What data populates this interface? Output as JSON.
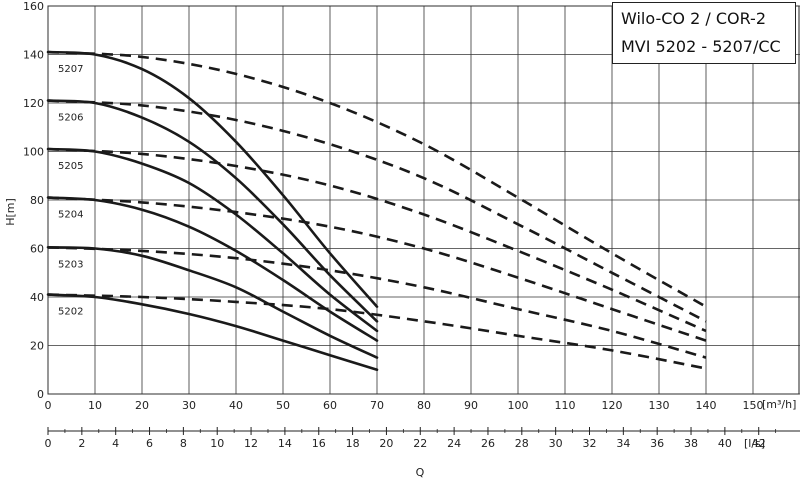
{
  "chart_data": {
    "type": "line",
    "title_lines": [
      "Wilo-CO 2 / COR-2",
      "MVI 5202 - 5207/CC"
    ],
    "ylabel": "H[m]",
    "xlabel": "Q",
    "x_unit": "[m³/h]",
    "x2_unit": "[l/s]",
    "ylim": [
      0,
      160
    ],
    "xlim": [
      0,
      160
    ],
    "x2lim": [
      0,
      44.44
    ],
    "y_ticks": [
      0,
      20,
      40,
      60,
      80,
      100,
      120,
      140,
      160
    ],
    "x_ticks": [
      0,
      10,
      20,
      30,
      40,
      50,
      60,
      70,
      80,
      90,
      100,
      110,
      120,
      130,
      140,
      150
    ],
    "x2_ticks": [
      0,
      2,
      4,
      6,
      8,
      10,
      12,
      14,
      16,
      18,
      20,
      22,
      24,
      26,
      28,
      30,
      32,
      34,
      36,
      38,
      40,
      42
    ],
    "grid": true,
    "series": [
      {
        "name": "5207",
        "solid": [
          [
            0,
            141
          ],
          [
            10,
            140
          ],
          [
            20,
            134
          ],
          [
            30,
            122
          ],
          [
            40,
            104
          ],
          [
            50,
            82
          ],
          [
            60,
            58
          ],
          [
            70,
            36
          ]
        ],
        "dashed": [
          [
            0,
            141
          ],
          [
            20,
            139
          ],
          [
            40,
            132
          ],
          [
            60,
            120
          ],
          [
            80,
            103
          ],
          [
            100,
            81
          ],
          [
            120,
            58
          ],
          [
            140,
            36
          ]
        ]
      },
      {
        "name": "5206",
        "solid": [
          [
            0,
            121
          ],
          [
            10,
            120
          ],
          [
            20,
            114
          ],
          [
            30,
            104
          ],
          [
            40,
            89
          ],
          [
            50,
            70
          ],
          [
            60,
            49
          ],
          [
            70,
            30
          ]
        ],
        "dashed": [
          [
            0,
            121
          ],
          [
            20,
            119
          ],
          [
            40,
            113
          ],
          [
            60,
            103
          ],
          [
            80,
            89
          ],
          [
            100,
            70
          ],
          [
            120,
            50
          ],
          [
            140,
            30
          ]
        ]
      },
      {
        "name": "5205",
        "solid": [
          [
            0,
            101
          ],
          [
            10,
            100
          ],
          [
            20,
            95
          ],
          [
            30,
            87
          ],
          [
            40,
            74
          ],
          [
            50,
            58
          ],
          [
            60,
            41
          ],
          [
            70,
            26
          ]
        ],
        "dashed": [
          [
            0,
            101
          ],
          [
            20,
            99
          ],
          [
            40,
            94
          ],
          [
            60,
            86
          ],
          [
            80,
            74
          ],
          [
            100,
            59
          ],
          [
            120,
            43
          ],
          [
            140,
            26
          ]
        ]
      },
      {
        "name": "5204",
        "solid": [
          [
            0,
            81
          ],
          [
            10,
            80
          ],
          [
            20,
            76
          ],
          [
            30,
            69
          ],
          [
            40,
            59
          ],
          [
            50,
            47
          ],
          [
            60,
            34
          ],
          [
            70,
            22
          ]
        ],
        "dashed": [
          [
            0,
            81
          ],
          [
            20,
            79
          ],
          [
            40,
            75
          ],
          [
            60,
            69
          ],
          [
            80,
            60
          ],
          [
            100,
            48
          ],
          [
            120,
            35
          ],
          [
            140,
            22
          ]
        ]
      },
      {
        "name": "5203",
        "solid": [
          [
            0,
            60.5
          ],
          [
            10,
            60
          ],
          [
            20,
            57
          ],
          [
            30,
            51
          ],
          [
            40,
            44
          ],
          [
            50,
            34
          ],
          [
            60,
            24
          ],
          [
            70,
            15
          ]
        ],
        "dashed": [
          [
            0,
            60.5
          ],
          [
            20,
            59
          ],
          [
            40,
            56
          ],
          [
            60,
            51
          ],
          [
            80,
            44
          ],
          [
            100,
            35
          ],
          [
            120,
            26
          ],
          [
            140,
            15
          ]
        ]
      },
      {
        "name": "5202",
        "solid": [
          [
            0,
            41
          ],
          [
            10,
            40
          ],
          [
            20,
            37
          ],
          [
            30,
            33
          ],
          [
            40,
            28
          ],
          [
            50,
            22
          ],
          [
            60,
            16
          ],
          [
            70,
            10
          ]
        ],
        "dashed": [
          [
            0,
            41
          ],
          [
            20,
            40
          ],
          [
            40,
            38
          ],
          [
            60,
            35
          ],
          [
            80,
            30
          ],
          [
            100,
            24
          ],
          [
            120,
            18
          ],
          [
            140,
            10.5
          ]
        ]
      }
    ]
  }
}
